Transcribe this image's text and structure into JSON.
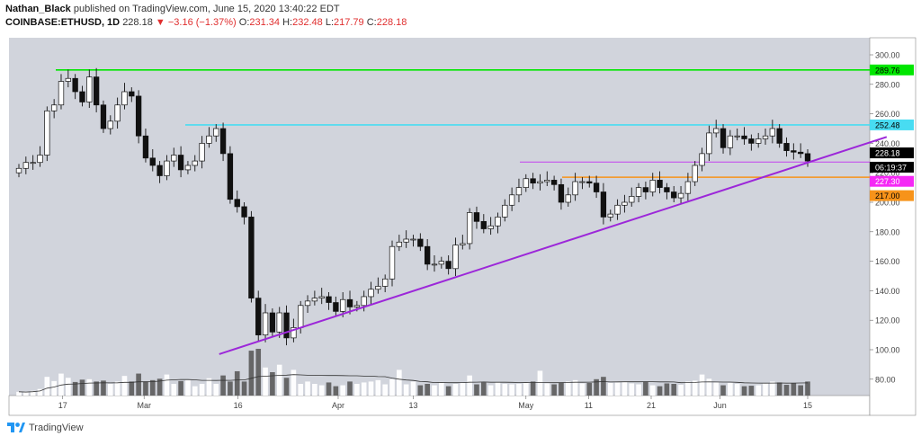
{
  "header": {
    "author": "Nathan_Black",
    "published_text": "published on TradingView.com, June 15, 2020 13:40:22 EDT",
    "symbol": "COINBASE:ETHUSD, 1D",
    "last": "228.18",
    "arrow": "▼",
    "change": "−3.16 (−1.37%)",
    "o_label": "O:",
    "o_value": "231.34",
    "h_label": "H:",
    "h_value": "232.48",
    "l_label": "L:",
    "l_value": "217.79",
    "c_label": "C:",
    "c_value": "228.18"
  },
  "footer": {
    "brand": "TradingView"
  },
  "colors": {
    "background": "#d1d4dc",
    "up_candle": "#ffffff",
    "down_candle": "#111111",
    "green_line": "#00e600",
    "cyan_line": "#48dcf2",
    "magenta_line": "#c341ee",
    "orange_line": "#f7931a",
    "trend_line": "#9c27d9",
    "price_tag": "#000000",
    "magenta_tag": "#f528f5",
    "orange_tag": "#f7931a"
  },
  "chart_data": {
    "type": "candlestick",
    "symbol": "COINBASE:ETHUSD",
    "interval": "1D",
    "ylim": [
      70,
      310
    ],
    "y_ticks": [
      80,
      100,
      120,
      140,
      160,
      180,
      200,
      220,
      240,
      260,
      280,
      300
    ],
    "x_ticks": [
      {
        "label": "17",
        "date": "2020-02-17"
      },
      {
        "label": "Mar",
        "date": "2020-03-01"
      },
      {
        "label": "16",
        "date": "2020-03-16"
      },
      {
        "label": "Apr",
        "date": "2020-04-01"
      },
      {
        "label": "13",
        "date": "2020-04-13"
      },
      {
        "label": "May",
        "date": "2020-05-01"
      },
      {
        "label": "11",
        "date": "2020-05-11"
      },
      {
        "label": "21",
        "date": "2020-05-21"
      },
      {
        "label": "Jun",
        "date": "2020-06-01"
      },
      {
        "label": "15",
        "date": "2020-06-15"
      }
    ],
    "date_range": [
      "2020-02-10",
      "2020-06-15"
    ],
    "close": [
      223,
      227,
      227,
      232,
      262,
      266,
      282,
      284,
      275,
      268,
      285,
      266,
      250,
      255,
      266,
      275,
      272,
      245,
      230,
      225,
      218,
      228,
      232,
      222,
      225,
      228,
      240,
      245,
      250,
      233,
      202,
      197,
      190,
      135,
      110,
      125,
      112,
      125,
      108,
      115,
      130,
      133,
      135,
      136,
      132,
      126,
      134,
      129,
      130,
      136,
      141,
      143,
      148,
      170,
      173,
      175,
      175,
      170,
      158,
      158,
      160,
      155,
      171,
      172,
      193,
      187,
      182,
      184,
      190,
      198,
      205,
      210,
      216,
      213,
      214,
      215,
      212,
      200,
      205,
      214,
      214,
      213,
      207,
      190,
      192,
      198,
      200,
      204,
      210,
      207,
      215,
      210,
      207,
      203,
      206,
      214,
      225,
      233,
      247,
      250,
      237,
      245,
      245,
      243,
      240,
      243,
      245,
      250,
      240,
      235,
      234,
      233,
      228
    ],
    "volume_scale": "relative (0-1)",
    "volume": [
      0.08,
      0.07,
      0.1,
      0.14,
      0.4,
      0.31,
      0.47,
      0.38,
      0.29,
      0.34,
      0.35,
      0.3,
      0.32,
      0.25,
      0.3,
      0.42,
      0.3,
      0.47,
      0.3,
      0.33,
      0.36,
      0.45,
      0.25,
      0.31,
      0.33,
      0.2,
      0.25,
      0.37,
      0.25,
      0.43,
      0.3,
      0.52,
      0.3,
      0.96,
      1.0,
      0.6,
      0.5,
      0.66,
      0.38,
      0.55,
      0.25,
      0.3,
      0.25,
      0.22,
      0.28,
      0.2,
      0.22,
      0.3,
      0.25,
      0.28,
      0.3,
      0.33,
      0.24,
      0.35,
      0.55,
      0.24,
      0.3,
      0.22,
      0.25,
      0.22,
      0.29,
      0.2,
      0.25,
      0.27,
      0.43,
      0.24,
      0.28,
      0.22,
      0.28,
      0.25,
      0.24,
      0.25,
      0.27,
      0.3,
      0.53,
      0.26,
      0.24,
      0.28,
      0.3,
      0.33,
      0.26,
      0.27,
      0.35,
      0.4,
      0.27,
      0.28,
      0.3,
      0.26,
      0.24,
      0.3,
      0.22,
      0.2,
      0.26,
      0.25,
      0.23,
      0.3,
      0.32,
      0.45,
      0.36,
      0.28,
      0.22,
      0.27,
      0.25,
      0.2,
      0.21,
      0.22,
      0.26,
      0.3,
      0.28,
      0.23,
      0.27,
      0.22,
      0.3
    ],
    "volume_ma_label": "",
    "horizontal_lines": [
      {
        "price": 289.76,
        "label": "289.76",
        "color": "green"
      },
      {
        "price": 252.48,
        "label": "252.48",
        "color": "cyan"
      },
      {
        "price": 227.3,
        "label": "227.30",
        "color": "magenta"
      },
      {
        "price": 217.0,
        "label": "217.00",
        "color": "orange"
      }
    ],
    "trend_line": {
      "from": {
        "date": "2020-03-13",
        "price": 97
      },
      "to": {
        "date": "2020-06-19",
        "price": 237
      }
    },
    "last_price_label": "228.18",
    "countdown": "06:19:37"
  }
}
